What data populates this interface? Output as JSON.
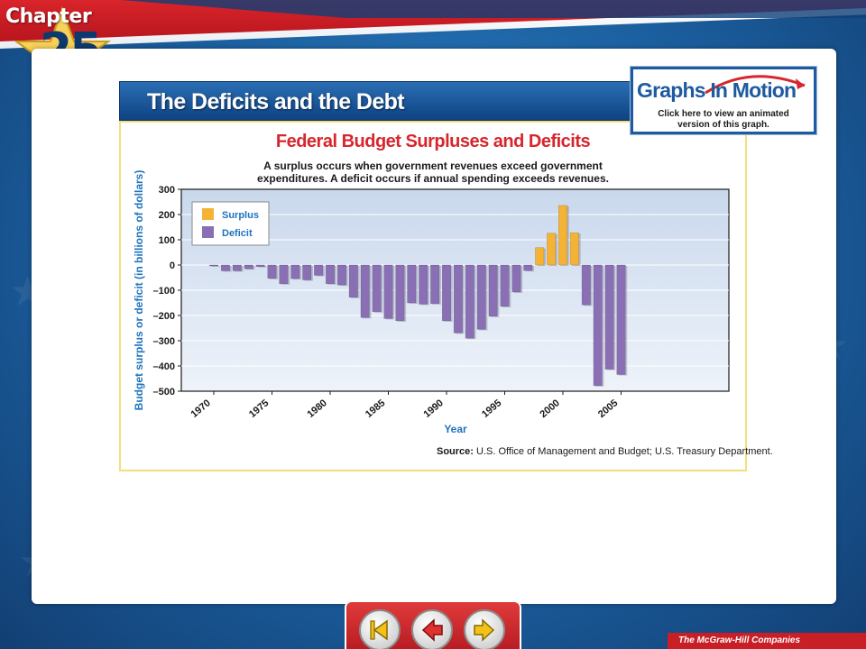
{
  "header": {
    "chapter_word": "Chapter",
    "chapter_number": "25",
    "slide_title": "The Deficits and the Debt"
  },
  "graphs_in_motion": {
    "title": "Graphs In Motion",
    "line1": "Click here to view an animated",
    "line2": "version of this graph."
  },
  "chart_data": {
    "type": "bar",
    "title": "Federal Budget Surpluses and Deficits",
    "subtitle_line1": "A surplus occurs when government revenues exceed government",
    "subtitle_line2": "expenditures. A deficit occurs if annual spending exceeds revenues.",
    "xlabel": "Year",
    "ylabel": "Budget surplus or deficit (in billions of dollars)",
    "ylim": [
      -500,
      300
    ],
    "yticks": [
      300,
      200,
      100,
      0,
      -100,
      -200,
      -300,
      -400,
      -500
    ],
    "ytick_labels": [
      "300",
      "200",
      "100",
      "0",
      "–100",
      "–200",
      "–300",
      "–400",
      "–500"
    ],
    "xticks": [
      "1970",
      "1975",
      "1980",
      "1985",
      "1990",
      "1995",
      "2000",
      "2005"
    ],
    "grid": true,
    "legend_position": "top-left",
    "legend": [
      {
        "name": "Surplus",
        "color": "#f5b335"
      },
      {
        "name": "Deficit",
        "color": "#8a6fb4"
      }
    ],
    "years": [
      1970,
      1971,
      1972,
      1973,
      1974,
      1975,
      1976,
      1977,
      1978,
      1979,
      1980,
      1981,
      1982,
      1983,
      1984,
      1985,
      1986,
      1987,
      1988,
      1989,
      1990,
      1991,
      1992,
      1993,
      1994,
      1995,
      1996,
      1997,
      1998,
      1999,
      2000,
      2001,
      2002,
      2003,
      2004,
      2005
    ],
    "values": [
      -3,
      -23,
      -23,
      -15,
      -6,
      -53,
      -74,
      -54,
      -59,
      -41,
      -74,
      -79,
      -128,
      -208,
      -185,
      -212,
      -221,
      -150,
      -155,
      -153,
      -221,
      -269,
      -290,
      -255,
      -203,
      -164,
      -107,
      -22,
      69,
      126,
      236,
      128,
      -158,
      -478,
      -413,
      -434
    ],
    "source_label": "Source:",
    "source_text": "U.S. Office of Management and Budget; U.S. Treasury Department."
  },
  "footer": {
    "publisher": "The McGraw-Hill Companies"
  },
  "colors": {
    "surplus": "#f5b335",
    "deficit": "#8a6fb4",
    "title_red": "#d7262d",
    "axis_blue": "#1e73be"
  }
}
